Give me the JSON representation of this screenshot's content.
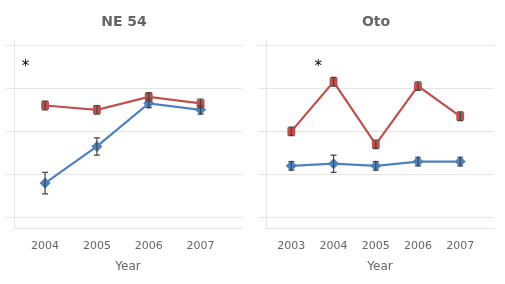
{
  "chart_data": [
    {
      "type": "line",
      "title": "NE 54",
      "x_label": "Year",
      "x": [
        2004,
        2005,
        2006,
        2007
      ],
      "xlim": [
        2003.4,
        2007.8
      ],
      "xticks": [
        2004,
        2005,
        2006,
        2007
      ],
      "ylim": [
        0.15,
        1.02
      ],
      "yticks": [
        0.2,
        0.4,
        0.6,
        0.8,
        1.0
      ],
      "grid": "y",
      "tick_labels": "x",
      "series": [
        {
          "color": "#C0504D",
          "marker": "square",
          "values": [
            0.72,
            0.7,
            0.76,
            0.73
          ],
          "error": [
            0.02,
            0.02,
            0.02,
            0.02
          ]
        },
        {
          "color": "#4F81BD",
          "marker": "diamond",
          "values": [
            0.36,
            0.53,
            0.73,
            0.7
          ],
          "error": [
            0.05,
            0.04,
            0.02,
            0.02
          ]
        }
      ],
      "annotations": [
        {
          "text": "*",
          "x": 2003.55,
          "y": 0.9
        }
      ]
    },
    {
      "type": "line",
      "title": "Oto",
      "x_label": "Year",
      "x": [
        2003,
        2004,
        2005,
        2006,
        2007
      ],
      "xlim": [
        2002.4,
        2007.8
      ],
      "xticks": [
        2003,
        2004,
        2005,
        2006,
        2007
      ],
      "ylim": [
        0.15,
        1.02
      ],
      "yticks": [
        0.2,
        0.4,
        0.6,
        0.8,
        1.0
      ],
      "grid": "y",
      "tick_labels": "x",
      "series": [
        {
          "color": "#C0504D",
          "marker": "square",
          "values": [
            0.6,
            0.83,
            0.54,
            0.81,
            0.67
          ],
          "error": [
            0.02,
            0.02,
            0.02,
            0.02,
            0.02
          ]
        },
        {
          "color": "#4F81BD",
          "marker": "diamond",
          "values": [
            0.44,
            0.45,
            0.44,
            0.46,
            0.46
          ],
          "error": [
            0.02,
            0.04,
            0.02,
            0.02,
            0.02
          ]
        }
      ],
      "annotations": [
        {
          "text": "*",
          "x": 2003.55,
          "y": 0.9
        }
      ]
    }
  ]
}
